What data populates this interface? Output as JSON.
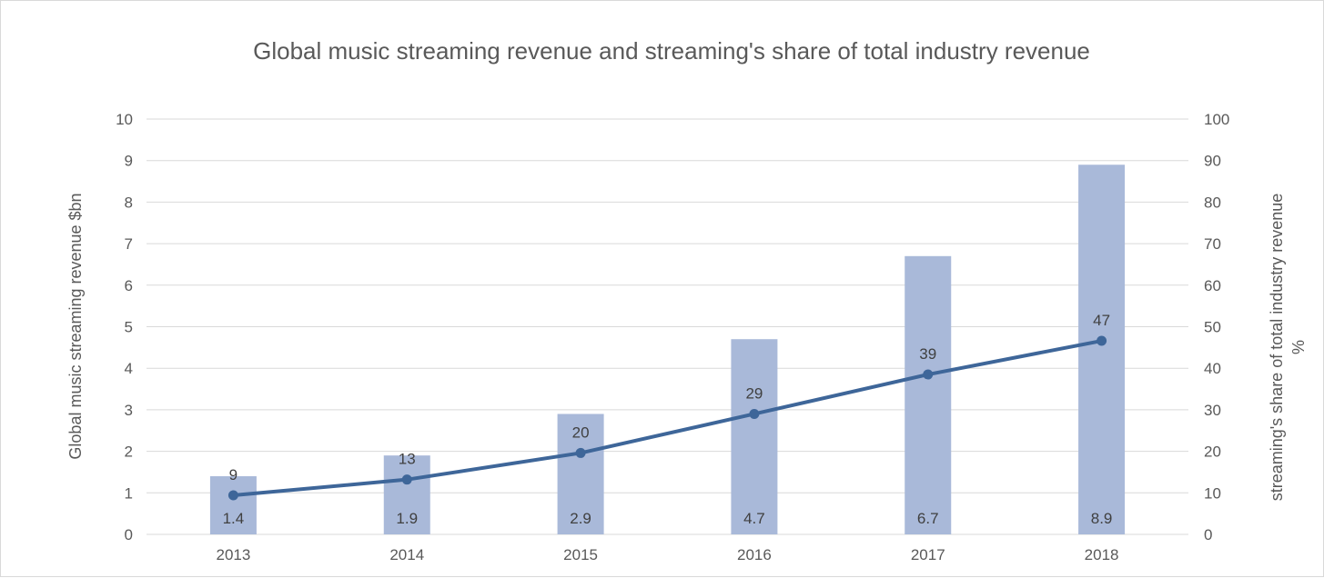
{
  "chart_data": {
    "type": "bar",
    "title": "Global music streaming revenue and streaming's share of total industry revenue",
    "categories": [
      "2013",
      "2014",
      "2015",
      "2016",
      "2017",
      "2018"
    ],
    "series": [
      {
        "name": "Global music streaming revenue $bn",
        "type": "bar",
        "axis": "left",
        "values": [
          1.4,
          1.9,
          2.9,
          4.7,
          6.7,
          8.9
        ],
        "labels": [
          "1.4",
          "1.9",
          "2.9",
          "4.7",
          "6.7",
          "8.9"
        ],
        "color": "#a9b9d9"
      },
      {
        "name": "streaming's share of total industry revenue %",
        "type": "line",
        "axis": "right",
        "values": [
          9.4,
          13.2,
          19.6,
          29,
          38.5,
          46.6
        ],
        "labels": [
          "9",
          "13",
          "20",
          "29",
          "39",
          "47"
        ],
        "color": "#3e6699"
      }
    ],
    "y_left": {
      "label": "Global music streaming revenue  $bn",
      "ylim": [
        0,
        10
      ],
      "ticks": [
        "0",
        "1",
        "2",
        "3",
        "4",
        "5",
        "6",
        "7",
        "8",
        "9",
        "10"
      ]
    },
    "y_right": {
      "label_line1": "streaming's share of total industry revenue",
      "label_line2": "%",
      "ylim": [
        0,
        100
      ],
      "ticks": [
        "0",
        "10",
        "20",
        "30",
        "40",
        "50",
        "60",
        "70",
        "80",
        "90",
        "100"
      ]
    },
    "grid": true,
    "legend": "none",
    "colors": {
      "gridline": "#d9d9d9",
      "text": "#595959"
    }
  }
}
